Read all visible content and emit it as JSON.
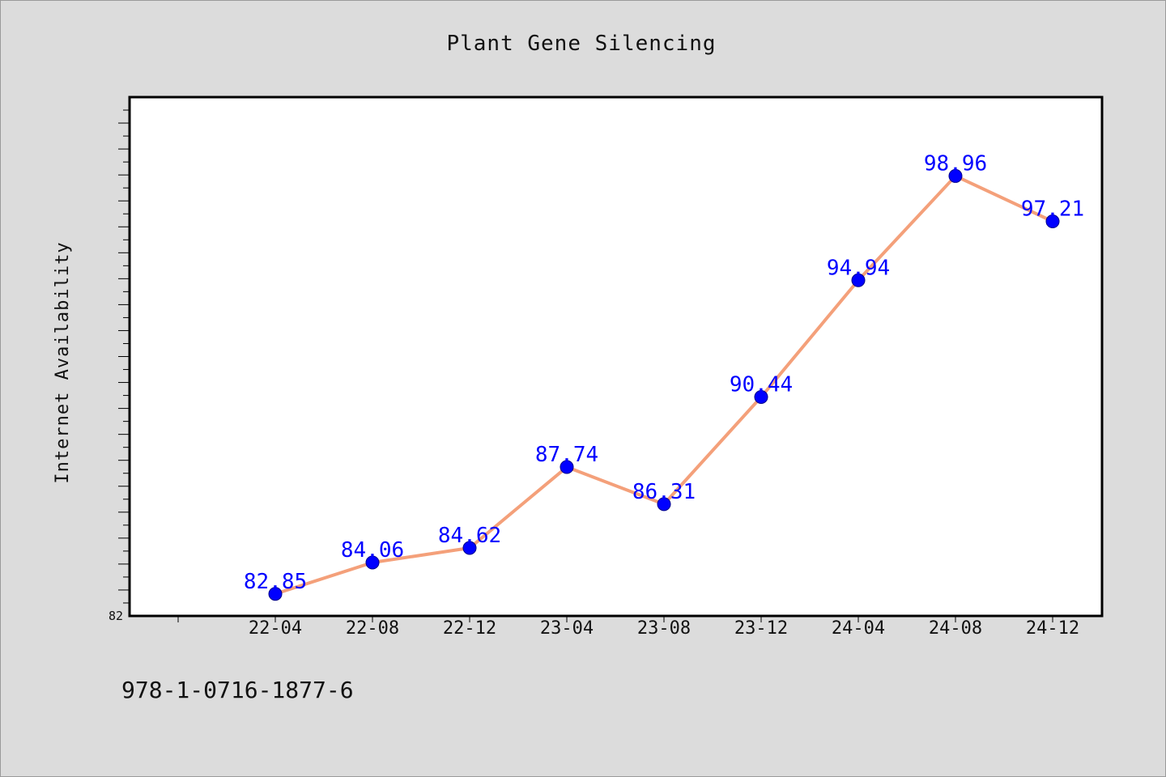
{
  "chart_data": {
    "type": "line",
    "title": "Plant Gene Silencing",
    "xlabel": "",
    "ylabel": "Internet Availability",
    "categories": [
      "22-04",
      "22-08",
      "22-12",
      "23-04",
      "23-08",
      "23-12",
      "24-04",
      "24-08",
      "24-12"
    ],
    "series": [
      {
        "values": [
          82.85,
          84.06,
          84.62,
          87.74,
          86.31,
          90.44,
          94.94,
          98.96,
          97.21
        ]
      }
    ],
    "y_tick_labels": [
      "82"
    ],
    "ylim": [
      82,
      102
    ],
    "grid": false,
    "line_color": "#f4a07a",
    "marker_color": "#0000ff",
    "label_color": "#0000ff"
  },
  "footer": {
    "text": "978-1-0716-1877-6"
  }
}
